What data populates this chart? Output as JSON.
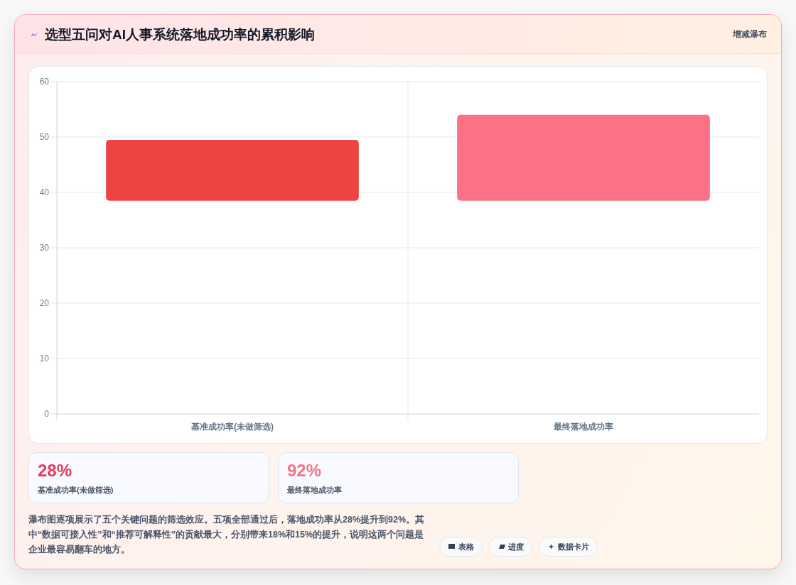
{
  "chart_data": [
    {
      "type": "bar",
      "title": "选型五问对AI人事系统落地成功率的累积影响",
      "categories": [
        "基准成功率(未做筛选)",
        "最终落地成功率"
      ],
      "values": [
        11,
        15.5
      ],
      "base": [
        38.5,
        38.5
      ],
      "colors": [
        "#ef4444",
        "#fb7185"
      ],
      "ylim": [
        0,
        60
      ],
      "yticks": [
        0,
        10,
        20,
        30,
        40,
        50,
        60
      ],
      "grid": true,
      "annotations": [
        "增减瀑布",
        "瀑布图逐项展示了五个关键问题的筛选效应。五项全部通过后，落地成功率从28%提升到92%。其中“数据可接入性”和“推荐可解释性”的贡献最大，分别带来18%和15%的提升，说明这两个问题是企业最容易翻车的地方。",
        "表格",
        "进度",
        "数据卡片"
      ]
    },
    {
      "type": "other",
      "annotations": [
        "28%",
        "基准成功率(未做筛选)"
      ]
    },
    {
      "type": "other",
      "annotations": [
        "92%",
        "最终落地成功率"
      ]
    }
  ]
}
